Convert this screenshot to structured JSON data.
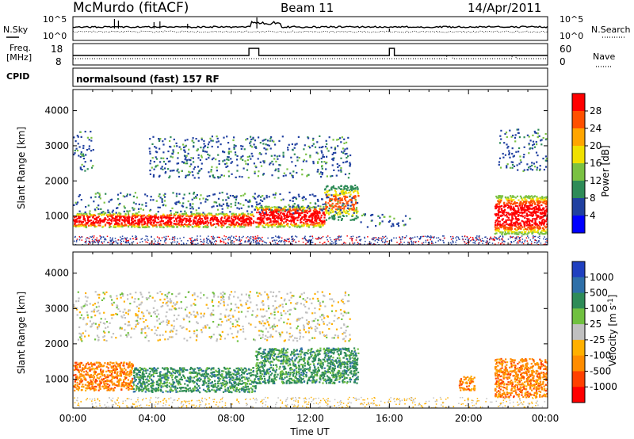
{
  "header": {
    "station": "McMurdo (fitACF)",
    "beam": "Beam 11",
    "date": "14/Apr/2011"
  },
  "top_panels": {
    "nsky_label": "N.Sky",
    "nsearch_label": "N.Search",
    "freq_label_1": "Freq.",
    "freq_label_2": "[MHz]",
    "nave_label": "Nave",
    "cpid_label": "CPID",
    "cpid_value": "normalsound (fast) 157 RF",
    "noise_ticks_left": [
      "10^5",
      "10^0"
    ],
    "noise_ticks_right": [
      "10^5",
      "10^0"
    ],
    "freq_ticks": [
      "18",
      "8"
    ],
    "nave_ticks": [
      "60",
      "0"
    ]
  },
  "axes": {
    "xlabel": "Time UT",
    "x_ticks": [
      "00:00",
      "04:00",
      "08:00",
      "12:00",
      "16:00",
      "20:00",
      "00:00"
    ],
    "ylabel": "Slant Range [km]",
    "y_ticks": [
      "1000",
      "2000",
      "3000",
      "4000"
    ]
  },
  "power_colorbar": {
    "label": "Power [dB]",
    "ticks": [
      "4",
      "8",
      "12",
      "16",
      "20",
      "24",
      "28"
    ],
    "colors": [
      "#0000ff",
      "#2040a0",
      "#2e8b57",
      "#7ac142",
      "#f0e000",
      "#ffa500",
      "#ff5000",
      "#ff0000"
    ]
  },
  "velocity_colorbar": {
    "label": "Velocity [m s-1]",
    "label_main": "Velocity [m s",
    "label_sup": "-1",
    "label_end": "]",
    "ticks": [
      "1000",
      "500",
      "100",
      "25",
      "-25",
      "-100",
      "-500",
      "-1000"
    ],
    "colors": [
      "#2040c0",
      "#2e6fa8",
      "#2e8b57",
      "#70c040",
      "#c0c0c0",
      "#ffb000",
      "#ff8c00",
      "#ff4000",
      "#ff0000"
    ]
  },
  "chart_data": {
    "type": "heatmap",
    "title": "McMurdo (fitACF)",
    "subtitle": "Beam 11",
    "xlabel": "Time UT",
    "ylabel": "Slant Range [km]",
    "xlim": [
      "00:00",
      "24:00"
    ],
    "ylim": [
      180,
      4600
    ],
    "series": [
      {
        "name": "Power [dB]",
        "regions": [
          {
            "t": [
              0,
              9.1
            ],
            "range_km": [
              700,
              1100
            ],
            "level": "strong"
          },
          {
            "t": [
              9.2,
              12.7
            ],
            "range_km": [
              700,
              1300
            ],
            "level": "strong"
          },
          {
            "t": [
              12.7,
              14.4
            ],
            "range_km": [
              900,
              1900
            ],
            "level": "medium"
          },
          {
            "t": [
              0,
              14.4
            ],
            "range_km": [
              1100,
              1700
            ],
            "level": "weak"
          },
          {
            "t": [
              0,
              1.0
            ],
            "range_km": [
              2300,
              3500
            ],
            "level": "weak"
          },
          {
            "t": [
              3.8,
              14.0
            ],
            "range_km": [
              2100,
              3300
            ],
            "level": "weak"
          },
          {
            "t": [
              14.5,
              17.0
            ],
            "range_km": [
              700,
              1100
            ],
            "level": "weak"
          },
          {
            "t": [
              21.3,
              24.0
            ],
            "range_km": [
              500,
              1600
            ],
            "level": "strong"
          },
          {
            "t": [
              21.5,
              24.0
            ],
            "range_km": [
              2300,
              3500
            ],
            "level": "weak"
          }
        ]
      },
      {
        "name": "Velocity [m s-1]",
        "regions": [
          {
            "t": [
              0,
              3.0
            ],
            "range_km": [
              700,
              1500
            ],
            "level": "-100"
          },
          {
            "t": [
              3.0,
              9.2
            ],
            "range_km": [
              650,
              1350
            ],
            "level": "100"
          },
          {
            "t": [
              9.2,
              14.4
            ],
            "range_km": [
              900,
              1900
            ],
            "level": "100"
          },
          {
            "t": [
              0,
              14.0
            ],
            "range_km": [
              2100,
              3500
            ],
            "level": "25"
          },
          {
            "t": [
              19.5,
              20.3
            ],
            "range_km": [
              700,
              1100
            ],
            "level": "-100"
          },
          {
            "t": [
              21.3,
              24.0
            ],
            "range_km": [
              500,
              1600
            ],
            "level": "-100"
          }
        ]
      }
    ]
  }
}
